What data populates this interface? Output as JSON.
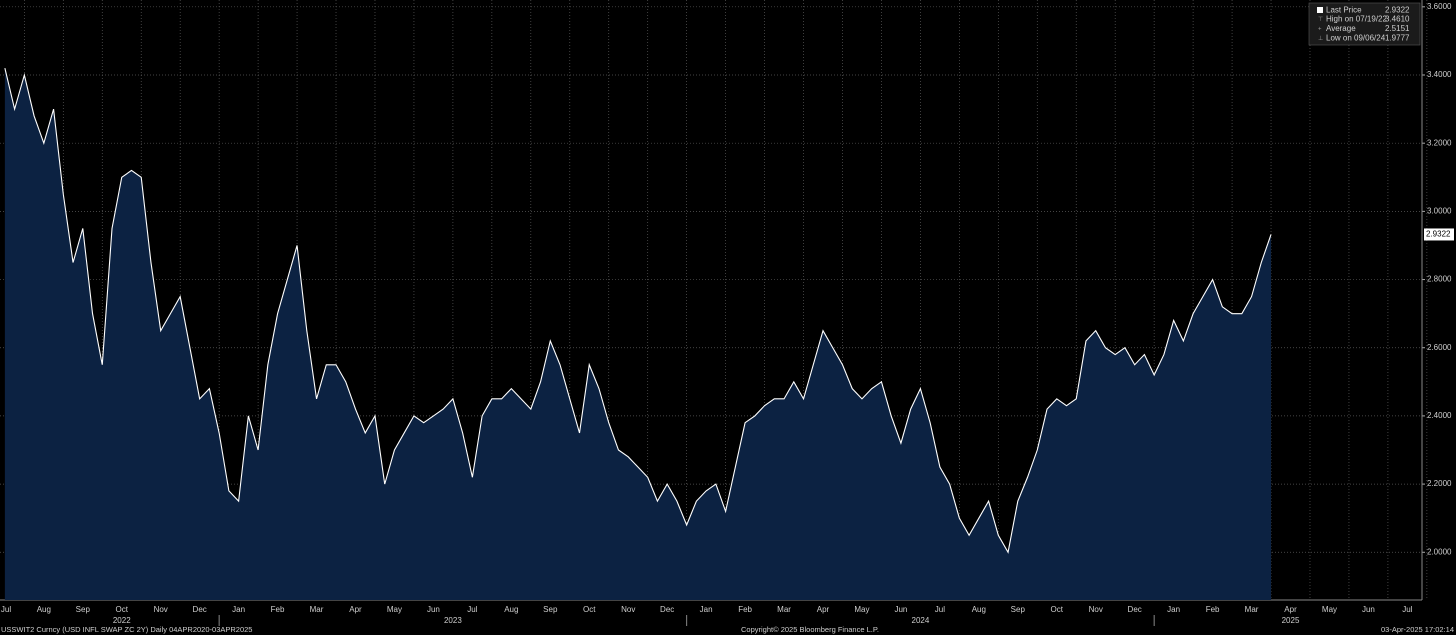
{
  "chart_data": {
    "type": "area",
    "categories": [
      "Jul",
      null,
      null,
      null,
      "Aug",
      null,
      null,
      null,
      "Sep",
      null,
      null,
      null,
      "Oct",
      null,
      null,
      null,
      "Nov",
      null,
      null,
      null,
      "Dec",
      null,
      null,
      null,
      "Jan",
      null,
      null,
      null,
      "Feb",
      null,
      null,
      null,
      "Mar",
      null,
      null,
      null,
      "Apr",
      null,
      null,
      null,
      "May",
      null,
      null,
      null,
      "Jun",
      null,
      null,
      null,
      "Jul",
      null,
      null,
      null,
      "Aug",
      null,
      null,
      null,
      "Sep",
      null,
      null,
      null,
      "Oct",
      null,
      null,
      null,
      "Nov",
      null,
      null,
      null,
      "Dec",
      null,
      null,
      null,
      "Jan",
      null,
      null,
      null,
      "Feb",
      null,
      null,
      null,
      "Mar",
      null,
      null,
      null,
      "Apr",
      null,
      null,
      null,
      "May",
      null,
      null,
      null,
      "Jun",
      null,
      null,
      null,
      "Jul",
      null,
      null,
      null,
      "Aug",
      null,
      null,
      null,
      "Sep",
      null,
      null,
      null,
      "Oct",
      null,
      null,
      null,
      "Nov",
      null,
      null,
      null,
      "Dec",
      null,
      null,
      null,
      "Jan",
      null,
      null,
      null,
      "Feb",
      null,
      null,
      null,
      "Mar",
      null,
      null,
      null,
      "Apr",
      null,
      null,
      null,
      "May",
      null,
      null,
      null,
      "Jun",
      null,
      null,
      null,
      "Jul",
      null
    ],
    "years": [
      "2022",
      "2023",
      "2024",
      "2025"
    ],
    "series": [
      {
        "name": "Last Price",
        "color": "#ffffff",
        "fill": "#0c2242",
        "values": [
          3.42,
          3.3,
          3.4,
          3.28,
          3.2,
          3.3,
          3.05,
          2.85,
          2.95,
          2.7,
          2.55,
          2.95,
          3.1,
          3.12,
          3.1,
          2.85,
          2.65,
          2.7,
          2.75,
          2.6,
          2.45,
          2.48,
          2.35,
          2.18,
          2.15,
          2.4,
          2.3,
          2.55,
          2.7,
          2.8,
          2.9,
          2.65,
          2.45,
          2.55,
          2.55,
          2.5,
          2.42,
          2.35,
          2.4,
          2.2,
          2.3,
          2.35,
          2.4,
          2.38,
          2.4,
          2.42,
          2.45,
          2.35,
          2.22,
          2.4,
          2.45,
          2.45,
          2.48,
          2.45,
          2.42,
          2.5,
          2.62,
          2.55,
          2.45,
          2.35,
          2.55,
          2.48,
          2.38,
          2.3,
          2.28,
          2.25,
          2.22,
          2.15,
          2.2,
          2.15,
          2.08,
          2.15,
          2.18,
          2.2,
          2.12,
          2.25,
          2.38,
          2.4,
          2.43,
          2.45,
          2.45,
          2.5,
          2.45,
          2.55,
          2.65,
          2.6,
          2.55,
          2.48,
          2.45,
          2.48,
          2.5,
          2.4,
          2.32,
          2.42,
          2.48,
          2.38,
          2.25,
          2.2,
          2.1,
          2.05,
          2.1,
          2.15,
          2.05,
          2.0,
          2.15,
          2.22,
          2.3,
          2.42,
          2.45,
          2.43,
          2.45,
          2.62,
          2.65,
          2.6,
          2.58,
          2.6,
          2.55,
          2.58,
          2.52,
          2.58,
          2.68,
          2.62,
          2.7,
          2.75,
          2.8,
          2.72,
          2.7,
          2.7,
          2.75,
          2.85,
          2.9322,
          null,
          null,
          null,
          null,
          null,
          null,
          null,
          null,
          null,
          null,
          null,
          null,
          null,
          null,
          null
        ]
      }
    ],
    "ylim": [
      1.86,
      3.62
    ],
    "yticks": [
      {
        "value": 2.0,
        "label": "2.0000"
      },
      {
        "value": 2.2,
        "label": "2.2000"
      },
      {
        "value": 2.4,
        "label": "2.4000"
      },
      {
        "value": 2.6,
        "label": "2.6000"
      },
      {
        "value": 2.8,
        "label": "2.8000"
      },
      {
        "value": 3.0,
        "label": "3.0000"
      },
      {
        "value": 3.2,
        "label": "3.2000"
      },
      {
        "value": 3.4,
        "label": "3.4000"
      },
      {
        "value": 3.6,
        "label": "3.6000"
      }
    ],
    "grid": true,
    "legend": {
      "position": "top-right",
      "last_label": "2.9322",
      "items": [
        {
          "label": "High on 07/19/22",
          "value": "3.4610"
        },
        {
          "label": "Average",
          "value": "2.5151"
        },
        {
          "label": "Low on 09/06/24",
          "value": "1.9777"
        }
      ]
    },
    "footer": {
      "left": "USSWIT2 Curncy (USD INFL SWAP ZC 2Y)  Daily 04APR2020-03APR2025",
      "center": "Copyright© 2025 Bloomberg Finance L.P.",
      "right": "03-Apr-2025 17:02:14"
    }
  }
}
